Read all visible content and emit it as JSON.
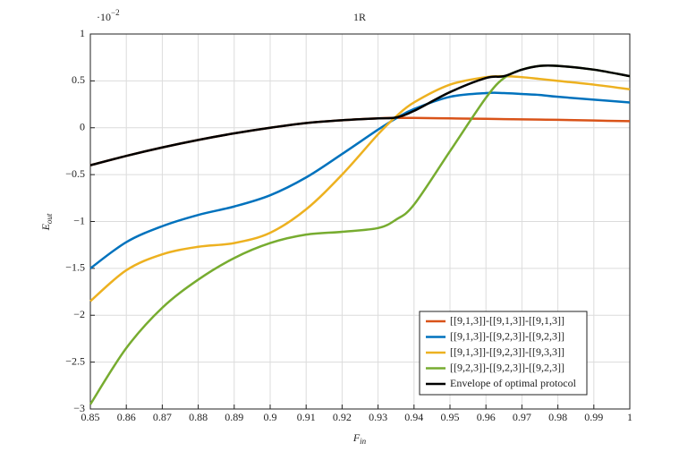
{
  "chart_data": {
    "type": "line",
    "title": "1R",
    "xlabel": {
      "base": "F",
      "sub": "in"
    },
    "ylabel": {
      "base": "E",
      "sub": "out"
    },
    "y_multiplier": {
      "base": "·10",
      "exponent": "−2"
    },
    "x": [
      0.85,
      0.86,
      0.87,
      0.88,
      0.89,
      0.9,
      0.91,
      0.92,
      0.93,
      0.935,
      0.94,
      0.95,
      0.96,
      0.965,
      0.97,
      0.975,
      0.98,
      0.99,
      1
    ],
    "series": [
      {
        "name": "[[9,1,3]]-[[9,1,3]]-[[9,1,3]]",
        "color": "#d95319",
        "values": [
          -0.4,
          -0.3,
          -0.21,
          -0.13,
          -0.06,
          0.0,
          0.05,
          0.08,
          0.1,
          0.105,
          0.105,
          0.1,
          0.095,
          0.092,
          0.09,
          0.087,
          0.085,
          0.077,
          0.07
        ]
      },
      {
        "name": "[[9,1,3]]-[[9,2,3]]-[[9,2,3]]",
        "color": "#0072bd",
        "values": [
          -1.5,
          -1.22,
          -1.05,
          -0.93,
          -0.84,
          -0.72,
          -0.53,
          -0.28,
          -0.02,
          0.1,
          0.2,
          0.33,
          0.37,
          0.37,
          0.36,
          0.35,
          0.33,
          0.3,
          0.27
        ]
      },
      {
        "name": "[[9,1,3]]-[[9,2,3]]-[[9,3,3]]",
        "color": "#edb120",
        "values": [
          -1.85,
          -1.52,
          -1.35,
          -1.27,
          -1.23,
          -1.12,
          -0.87,
          -0.5,
          -0.07,
          0.12,
          0.27,
          0.46,
          0.54,
          0.55,
          0.54,
          0.52,
          0.5,
          0.46,
          0.41
        ]
      },
      {
        "name": "[[9,2,3]]-[[9,2,3]]-[[9,2,3]]",
        "color": "#77ac30",
        "values": [
          -2.95,
          -2.35,
          -1.92,
          -1.62,
          -1.39,
          -1.23,
          -1.14,
          -1.11,
          -1.07,
          -0.98,
          -0.82,
          -0.25,
          0.32,
          0.53,
          0.62,
          0.66,
          0.66,
          0.62,
          0.55
        ]
      },
      {
        "name": "Envelope of optimal protocol",
        "color": "#000000",
        "values": [
          -0.4,
          -0.3,
          -0.21,
          -0.13,
          -0.06,
          0.0,
          0.05,
          0.08,
          0.1,
          0.11,
          0.18,
          0.38,
          0.53,
          0.55,
          0.62,
          0.66,
          0.66,
          0.62,
          0.55
        ]
      }
    ],
    "xlim": [
      0.85,
      1
    ],
    "xticks": [
      0.85,
      0.86,
      0.87,
      0.88,
      0.89,
      0.9,
      0.91,
      0.92,
      0.93,
      0.94,
      0.95,
      0.96,
      0.97,
      0.98,
      0.99,
      1
    ],
    "ylim": [
      -3,
      1
    ],
    "yticks": [
      {
        "value": -3,
        "label": "−3"
      },
      {
        "value": -2.5,
        "label": "−2.5"
      },
      {
        "value": -2,
        "label": "−2"
      },
      {
        "value": -1.5,
        "label": "−1.5"
      },
      {
        "value": -1,
        "label": "−1"
      },
      {
        "value": -0.5,
        "label": "−0.5"
      },
      0,
      0.5,
      1
    ],
    "grid": true,
    "legend_position": "lower-right"
  }
}
